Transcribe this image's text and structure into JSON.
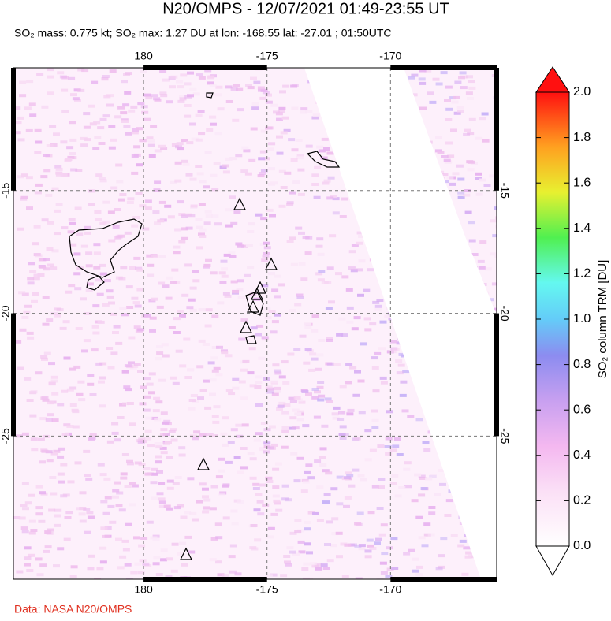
{
  "chart_data": {
    "type": "map",
    "title": "N20/OMPS - 12/07/2021 01:49-23:55 UT",
    "subtitle": "SO₂ mass: 0.775 kt; SO₂ max: 1.27 DU at lon: -168.55 lat: -27.01 ; 01:50UTC",
    "xlim": [
      174.73,
      194.3
    ],
    "xticks": [
      180,
      {
        "value": 185,
        "label": "-175"
      },
      {
        "value": 190,
        "label": "-170"
      }
    ],
    "ylim": [
      -30.83,
      -10
    ],
    "yticks": [
      -15,
      -20,
      -25
    ],
    "grid": true,
    "colorbar": {
      "label": "SO₂ column TRM [DU]",
      "lim": [
        0,
        2
      ],
      "ticks": [
        {
          "value": 0,
          "label": "0.0"
        },
        {
          "value": 0.2,
          "label": "0.2"
        },
        {
          "value": 0.4,
          "label": "0.4"
        },
        {
          "value": 0.6,
          "label": "0.6"
        },
        {
          "value": 0.8,
          "label": "0.8"
        },
        {
          "value": 1,
          "label": "1.0"
        },
        {
          "value": 1.2,
          "label": "1.2"
        },
        {
          "value": 1.4,
          "label": "1.4"
        },
        {
          "value": 1.6,
          "label": "1.6"
        },
        {
          "value": 1.8,
          "label": "1.8"
        },
        {
          "value": 2,
          "label": "2.0"
        }
      ]
    },
    "credit": "Data: NASA N20/OMPS"
  }
}
